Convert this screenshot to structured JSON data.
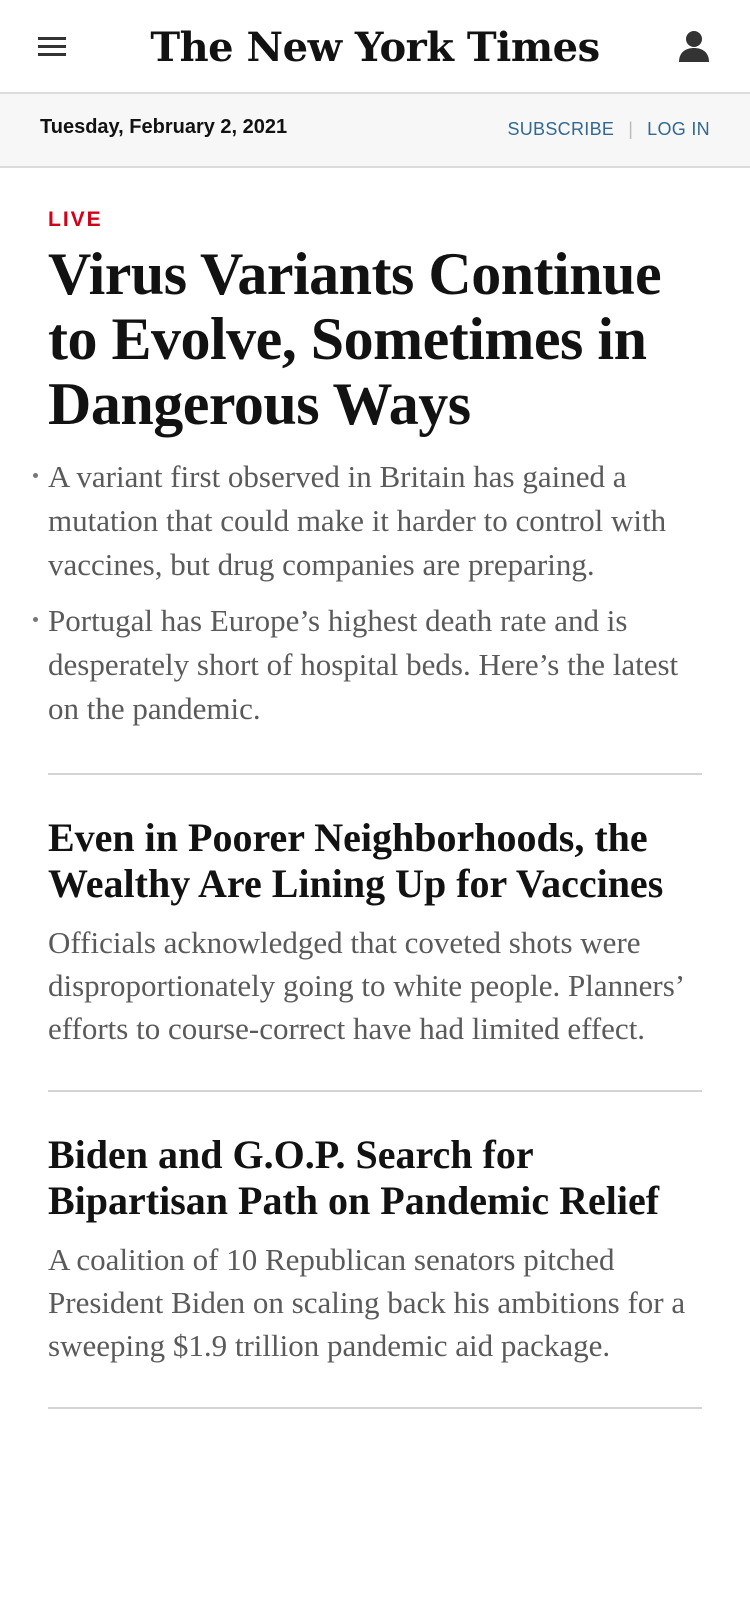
{
  "header": {
    "logo": "The New York Times",
    "menu_icon": "hamburger-menu-icon",
    "account_icon": "user-account-icon"
  },
  "datebar": {
    "date": "Tuesday, February 2, 2021",
    "subscribe": "SUBSCRIBE",
    "separator": "|",
    "login": "LOG IN"
  },
  "colors": {
    "live_red": "#d0021b",
    "link_blue": "#326891"
  },
  "lead": {
    "badge": "LIVE",
    "headline": "Virus Variants Continue to Evolve, Sometimes in Dangerous Ways",
    "bullets": [
      "A variant first observed in Britain has gained a mutation that could make it harder to control with vaccines, but drug companies are preparing.",
      "Portugal has Europe’s highest death rate and is desperately short of hospital beds. Here’s the latest on the pandemic."
    ]
  },
  "stories": [
    {
      "headline": "Even in Poorer Neighborhoods, the Wealthy Are Lining Up for Vaccines",
      "summary": "Officials acknowledged that coveted shots were disproportionately going to white people. Planners’ efforts to course-correct have had limited effect."
    },
    {
      "headline": "Biden and G.O.P. Search for Bipartisan Path on Pandemic Relief",
      "summary": "A coalition of 10 Republican senators pitched President Biden on scaling back his ambitions for a sweeping $1.9 trillion pandemic aid package."
    }
  ]
}
